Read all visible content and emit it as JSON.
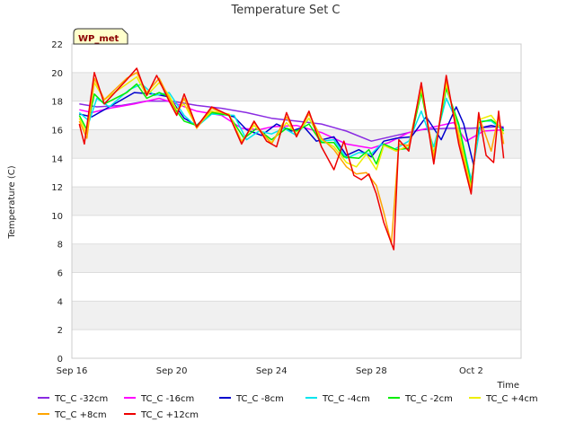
{
  "chart_data": {
    "type": "line",
    "title": "Temperature Set C",
    "xlabel": "Time",
    "ylabel": "Temperature (C)",
    "badge": "WP_met",
    "ylim": [
      0,
      22
    ],
    "xlim": [
      0,
      18
    ],
    "yticks": [
      0,
      2,
      4,
      6,
      8,
      10,
      12,
      14,
      16,
      18,
      20,
      22
    ],
    "xticks": [
      {
        "value": 0,
        "label": "Sep 16"
      },
      {
        "value": 4,
        "label": "Sep 20"
      },
      {
        "value": 8,
        "label": "Sep 24"
      },
      {
        "value": 12,
        "label": "Sep 28"
      },
      {
        "value": 16,
        "label": "Oct 2"
      }
    ],
    "grid": "horizontal bands",
    "legend_position": "bottom",
    "series": [
      {
        "name": "TC_C -32cm",
        "color": "#8a2be2",
        "points": [
          [
            0.3,
            17.8
          ],
          [
            1,
            17.6
          ],
          [
            2,
            17.7
          ],
          [
            3,
            18.0
          ],
          [
            4,
            18.0
          ],
          [
            5,
            17.7
          ],
          [
            6,
            17.5
          ],
          [
            7,
            17.2
          ],
          [
            8,
            16.8
          ],
          [
            9,
            16.6
          ],
          [
            10,
            16.4
          ],
          [
            11,
            15.9
          ],
          [
            12,
            15.2
          ],
          [
            13,
            15.6
          ],
          [
            14,
            16.0
          ],
          [
            15,
            16.1
          ],
          [
            16,
            16.1
          ],
          [
            17,
            16.2
          ],
          [
            17.3,
            16.2
          ]
        ]
      },
      {
        "name": "TC_C -16cm",
        "color": "#ff00ff",
        "points": [
          [
            0.3,
            17.4
          ],
          [
            0.8,
            17.2
          ],
          [
            1.5,
            17.5
          ],
          [
            2.5,
            17.8
          ],
          [
            3.5,
            18.2
          ],
          [
            4.2,
            17.8
          ],
          [
            5,
            17.3
          ],
          [
            6,
            17.0
          ],
          [
            6.8,
            16.1
          ],
          [
            7.5,
            16.0
          ],
          [
            8,
            16.2
          ],
          [
            9,
            16.3
          ],
          [
            10,
            15.8
          ],
          [
            11,
            15.0
          ],
          [
            12,
            14.7
          ],
          [
            12.7,
            15.1
          ],
          [
            13.5,
            15.8
          ],
          [
            14.5,
            16.2
          ],
          [
            15.3,
            16.5
          ],
          [
            15.8,
            15.2
          ],
          [
            16.5,
            15.9
          ],
          [
            17.3,
            16.0
          ]
        ]
      },
      {
        "name": "TC_C -8cm",
        "color": "#0000cd",
        "points": [
          [
            0.3,
            17.1
          ],
          [
            0.8,
            16.9
          ],
          [
            1.5,
            17.6
          ],
          [
            2.5,
            18.6
          ],
          [
            3.3,
            18.5
          ],
          [
            3.9,
            18.3
          ],
          [
            4.5,
            16.8
          ],
          [
            5,
            16.3
          ],
          [
            5.6,
            17.3
          ],
          [
            6.5,
            16.9
          ],
          [
            7,
            16.0
          ],
          [
            7.6,
            15.6
          ],
          [
            8.2,
            16.4
          ],
          [
            8.8,
            15.9
          ],
          [
            9.3,
            16.2
          ],
          [
            9.8,
            15.2
          ],
          [
            10.5,
            15.5
          ],
          [
            11,
            14.2
          ],
          [
            11.5,
            14.6
          ],
          [
            12,
            14.1
          ],
          [
            12.5,
            15.2
          ],
          [
            13,
            15.4
          ],
          [
            13.6,
            15.5
          ],
          [
            14.2,
            16.9
          ],
          [
            14.8,
            15.3
          ],
          [
            15.4,
            17.6
          ],
          [
            15.7,
            16.4
          ],
          [
            16.1,
            13.5
          ],
          [
            16.3,
            16.1
          ],
          [
            16.8,
            16.3
          ],
          [
            17.3,
            16.1
          ]
        ]
      },
      {
        "name": "TC_C -4cm",
        "color": "#00e5ee",
        "points": [
          [
            0.3,
            17.2
          ],
          [
            0.7,
            16.6
          ],
          [
            1,
            18.2
          ],
          [
            1.5,
            17.6
          ],
          [
            2.3,
            18.8
          ],
          [
            2.8,
            19.2
          ],
          [
            3.3,
            18.4
          ],
          [
            3.9,
            18.6
          ],
          [
            4.5,
            17.0
          ],
          [
            5,
            16.2
          ],
          [
            5.6,
            17.1
          ],
          [
            6.5,
            17.0
          ],
          [
            7,
            15.3
          ],
          [
            7.5,
            15.9
          ],
          [
            8,
            15.7
          ],
          [
            8.5,
            16.1
          ],
          [
            9,
            15.6
          ],
          [
            9.5,
            16.8
          ],
          [
            10,
            15.2
          ],
          [
            10.5,
            15.3
          ],
          [
            11,
            14.0
          ],
          [
            11.5,
            14.4
          ],
          [
            12,
            14.3
          ],
          [
            12.4,
            15.0
          ],
          [
            12.9,
            14.6
          ],
          [
            13.5,
            15.2
          ],
          [
            14,
            17.3
          ],
          [
            14.5,
            14.8
          ],
          [
            15,
            18.2
          ],
          [
            15.5,
            16.3
          ],
          [
            16,
            12.5
          ],
          [
            16.4,
            16.6
          ],
          [
            16.8,
            16.6
          ],
          [
            17.1,
            16.2
          ],
          [
            17.3,
            16.0
          ]
        ]
      },
      {
        "name": "TC_C -2cm",
        "color": "#00ee00",
        "points": [
          [
            0.3,
            17.0
          ],
          [
            0.6,
            16.0
          ],
          [
            0.9,
            18.5
          ],
          [
            1.3,
            17.8
          ],
          [
            2.2,
            18.6
          ],
          [
            2.6,
            19.2
          ],
          [
            3,
            18.2
          ],
          [
            3.5,
            18.6
          ],
          [
            3.9,
            18.3
          ],
          [
            4.2,
            17.3
          ],
          [
            4.5,
            16.6
          ],
          [
            5,
            16.3
          ],
          [
            5.6,
            17.2
          ],
          [
            6.3,
            17.0
          ],
          [
            6.9,
            15.4
          ],
          [
            7.4,
            16.1
          ],
          [
            8,
            15.3
          ],
          [
            8.6,
            16.1
          ],
          [
            9,
            15.9
          ],
          [
            9.5,
            16.4
          ],
          [
            10,
            15.1
          ],
          [
            10.5,
            15.1
          ],
          [
            10.9,
            14.1
          ],
          [
            11.5,
            14.0
          ],
          [
            11.9,
            14.6
          ],
          [
            12.2,
            13.6
          ],
          [
            12.5,
            15.0
          ],
          [
            13,
            14.6
          ],
          [
            13.5,
            14.7
          ],
          [
            14,
            18.6
          ],
          [
            14.5,
            14.3
          ],
          [
            15,
            18.9
          ],
          [
            15.5,
            16.4
          ],
          [
            16,
            12.1
          ],
          [
            16.3,
            16.5
          ],
          [
            16.8,
            16.7
          ],
          [
            17.1,
            16.3
          ],
          [
            17.3,
            15.9
          ]
        ]
      },
      {
        "name": "TC_C +4cm",
        "color": "#eeee00",
        "points": [
          [
            0.3,
            16.8
          ],
          [
            0.6,
            15.7
          ],
          [
            0.9,
            19.3
          ],
          [
            1.3,
            18.1
          ],
          [
            2.2,
            19.2
          ],
          [
            2.6,
            19.7
          ],
          [
            3,
            18.4
          ],
          [
            3.5,
            19.3
          ],
          [
            3.9,
            18.4
          ],
          [
            4.2,
            17.4
          ],
          [
            4.5,
            17.8
          ],
          [
            5,
            16.2
          ],
          [
            5.6,
            17.3
          ],
          [
            6.3,
            17.1
          ],
          [
            6.8,
            15.2
          ],
          [
            7.3,
            16.3
          ],
          [
            8,
            15.1
          ],
          [
            8.6,
            16.5
          ],
          [
            9,
            15.7
          ],
          [
            9.5,
            16.8
          ],
          [
            10,
            15.3
          ],
          [
            10.5,
            14.8
          ],
          [
            11,
            13.7
          ],
          [
            11.4,
            13.4
          ],
          [
            11.8,
            14.3
          ],
          [
            12.2,
            13.2
          ],
          [
            12.5,
            14.9
          ],
          [
            13,
            14.5
          ],
          [
            13.5,
            14.9
          ],
          [
            14,
            18.9
          ],
          [
            14.5,
            14.2
          ],
          [
            15,
            19.2
          ],
          [
            15.5,
            15.8
          ],
          [
            16,
            11.9
          ],
          [
            16.3,
            16.7
          ],
          [
            16.8,
            17.0
          ],
          [
            17.1,
            16.3
          ],
          [
            17.3,
            15.7
          ]
        ]
      },
      {
        "name": "TC_C +8cm",
        "color": "#ffa500",
        "points": [
          [
            0.3,
            16.6
          ],
          [
            0.6,
            15.4
          ],
          [
            0.9,
            19.6
          ],
          [
            1.3,
            18.1
          ],
          [
            2.2,
            19.6
          ],
          [
            2.6,
            20.0
          ],
          [
            3,
            18.6
          ],
          [
            3.5,
            19.6
          ],
          [
            3.9,
            18.2
          ],
          [
            4.2,
            17.1
          ],
          [
            4.5,
            18.2
          ],
          [
            5,
            16.1
          ],
          [
            5.6,
            17.5
          ],
          [
            6.3,
            17.0
          ],
          [
            6.8,
            15.1
          ],
          [
            7.3,
            16.5
          ],
          [
            8,
            15.0
          ],
          [
            8.6,
            16.9
          ],
          [
            9,
            15.6
          ],
          [
            9.5,
            17.1
          ],
          [
            10,
            15.4
          ],
          [
            10.5,
            14.6
          ],
          [
            11,
            13.4
          ],
          [
            11.4,
            12.9
          ],
          [
            11.8,
            13.0
          ],
          [
            12.2,
            12.1
          ],
          [
            12.5,
            10.2
          ],
          [
            12.8,
            8.0
          ],
          [
            13.1,
            15.0
          ],
          [
            13.5,
            14.9
          ],
          [
            14,
            19.1
          ],
          [
            14.5,
            14.0
          ],
          [
            15,
            19.5
          ],
          [
            15.5,
            15.4
          ],
          [
            16,
            11.7
          ],
          [
            16.3,
            17.0
          ],
          [
            16.8,
            14.5
          ],
          [
            17.1,
            17.0
          ],
          [
            17.3,
            15.0
          ]
        ]
      },
      {
        "name": "TC_C +12cm",
        "color": "#ee0000",
        "points": [
          [
            0.3,
            16.4
          ],
          [
            0.5,
            15.0
          ],
          [
            0.9,
            20.0
          ],
          [
            1.3,
            17.8
          ],
          [
            2.2,
            19.5
          ],
          [
            2.6,
            20.3
          ],
          [
            3,
            18.4
          ],
          [
            3.4,
            19.8
          ],
          [
            3.9,
            18.0
          ],
          [
            4.2,
            17.0
          ],
          [
            4.5,
            18.5
          ],
          [
            5,
            16.2
          ],
          [
            5.6,
            17.6
          ],
          [
            6.3,
            17.0
          ],
          [
            6.8,
            15.0
          ],
          [
            7.3,
            16.6
          ],
          [
            7.8,
            15.2
          ],
          [
            8.2,
            14.8
          ],
          [
            8.6,
            17.2
          ],
          [
            9,
            15.5
          ],
          [
            9.5,
            17.3
          ],
          [
            10,
            14.8
          ],
          [
            10.5,
            13.2
          ],
          [
            10.9,
            15.2
          ],
          [
            11.3,
            12.8
          ],
          [
            11.6,
            12.5
          ],
          [
            11.9,
            12.9
          ],
          [
            12.2,
            11.5
          ],
          [
            12.5,
            9.5
          ],
          [
            12.9,
            7.6
          ],
          [
            13.1,
            15.3
          ],
          [
            13.5,
            14.5
          ],
          [
            14,
            19.3
          ],
          [
            14.5,
            13.6
          ],
          [
            15,
            19.8
          ],
          [
            15.5,
            15.0
          ],
          [
            16,
            11.5
          ],
          [
            16.3,
            17.2
          ],
          [
            16.6,
            14.2
          ],
          [
            16.9,
            13.7
          ],
          [
            17.1,
            17.3
          ],
          [
            17.3,
            14.0
          ]
        ]
      }
    ]
  }
}
